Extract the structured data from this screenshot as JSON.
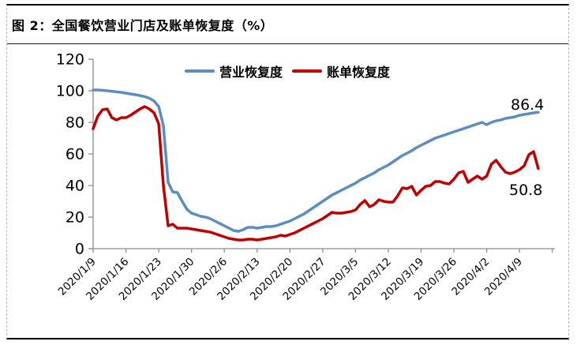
{
  "figure": {
    "title": "图 2：全国餐饮营业门店及账单恢复度（%）"
  },
  "chart_data": {
    "type": "line",
    "title": "全国餐饮营业门店及账单恢复度（%）",
    "grid": false,
    "legend_position": "top-center",
    "ylim": [
      0,
      120
    ],
    "yticks": [
      0,
      20,
      40,
      60,
      80,
      100,
      120
    ],
    "x_labels_shown": [
      "2020/1/9",
      "2020/1/16",
      "2020/1/23",
      "2020/1/30",
      "2020/2/6",
      "2020/2/13",
      "2020/2/20",
      "2020/2/27",
      "2020/3/5",
      "2020/3/12",
      "2020/3/19",
      "2020/3/26",
      "2020/4/2",
      "2020/4/9"
    ],
    "x": [
      "2020/1/9",
      "2020/1/10",
      "2020/1/11",
      "2020/1/12",
      "2020/1/13",
      "2020/1/14",
      "2020/1/15",
      "2020/1/16",
      "2020/1/17",
      "2020/1/18",
      "2020/1/19",
      "2020/1/20",
      "2020/1/21",
      "2020/1/22",
      "2020/1/23",
      "2020/1/24",
      "2020/1/25",
      "2020/1/26",
      "2020/1/27",
      "2020/1/28",
      "2020/1/29",
      "2020/1/30",
      "2020/1/31",
      "2020/2/1",
      "2020/2/2",
      "2020/2/3",
      "2020/2/4",
      "2020/2/5",
      "2020/2/6",
      "2020/2/7",
      "2020/2/8",
      "2020/2/9",
      "2020/2/10",
      "2020/2/11",
      "2020/2/12",
      "2020/2/13",
      "2020/2/14",
      "2020/2/15",
      "2020/2/16",
      "2020/2/17",
      "2020/2/18",
      "2020/2/19",
      "2020/2/20",
      "2020/2/21",
      "2020/2/22",
      "2020/2/23",
      "2020/2/24",
      "2020/2/25",
      "2020/2/26",
      "2020/2/27",
      "2020/2/28",
      "2020/2/29",
      "2020/3/1",
      "2020/3/2",
      "2020/3/3",
      "2020/3/4",
      "2020/3/5",
      "2020/3/6",
      "2020/3/7",
      "2020/3/8",
      "2020/3/9",
      "2020/3/10",
      "2020/3/11",
      "2020/3/12",
      "2020/3/13",
      "2020/3/14",
      "2020/3/15",
      "2020/3/16",
      "2020/3/17",
      "2020/3/18",
      "2020/3/19",
      "2020/3/20",
      "2020/3/21",
      "2020/3/22",
      "2020/3/23",
      "2020/3/24",
      "2020/3/25",
      "2020/3/26",
      "2020/3/27",
      "2020/3/28",
      "2020/3/29",
      "2020/3/30",
      "2020/3/31",
      "2020/4/1",
      "2020/4/2",
      "2020/4/3",
      "2020/4/4",
      "2020/4/5",
      "2020/4/6",
      "2020/4/7",
      "2020/4/8",
      "2020/4/9",
      "2020/4/10",
      "2020/4/11",
      "2020/4/12",
      "2020/4/13"
    ],
    "series": [
      {
        "name": "营业恢复度",
        "color": "#5B8DC1",
        "end_label": "86.4",
        "values": [
          100.5,
          100.5,
          100.3,
          100,
          99.7,
          99.3,
          99,
          98.5,
          98,
          97.5,
          97,
          96.3,
          95.3,
          93.5,
          90,
          78,
          42,
          36,
          35.5,
          30,
          25,
          22.5,
          21.5,
          20.5,
          20,
          19,
          17.5,
          16,
          14.5,
          13,
          11.5,
          11,
          12,
          13.5,
          13.5,
          13,
          13.5,
          14,
          14,
          14.5,
          15.5,
          16.5,
          17.5,
          19,
          20.5,
          22,
          24,
          26,
          28,
          30,
          32,
          34,
          35.5,
          37,
          38.5,
          40,
          41.5,
          43.5,
          45,
          46.5,
          48,
          50,
          51.5,
          53,
          55,
          57,
          59,
          60.5,
          62,
          64,
          65.5,
          67,
          68.5,
          70,
          71,
          72,
          73,
          74,
          75,
          76,
          77,
          78,
          79,
          80,
          78.5,
          80,
          81,
          81.5,
          82.5,
          83,
          83.5,
          84.5,
          85,
          85.5,
          86,
          86.4
        ]
      },
      {
        "name": "账单恢复度",
        "color": "#C00000",
        "end_label": "50.8",
        "values": [
          76,
          84,
          88,
          88.5,
          83,
          81.5,
          83,
          83,
          84.5,
          86.5,
          88.5,
          90,
          88.5,
          86,
          79,
          40,
          14.5,
          15.5,
          13,
          13,
          13,
          12.5,
          12,
          11.5,
          11,
          10.5,
          9.5,
          8.5,
          7.5,
          6.5,
          6,
          5.5,
          5.5,
          6,
          6,
          5.5,
          6,
          6.5,
          7,
          7.5,
          8.5,
          8,
          9,
          10,
          11.5,
          13,
          14.5,
          16,
          17.5,
          19,
          21,
          23,
          22.5,
          22.5,
          23,
          23.5,
          24.5,
          28,
          30.5,
          26.5,
          28,
          31,
          30,
          29.5,
          29.5,
          33.5,
          38.5,
          38,
          39.5,
          34,
          37,
          39.5,
          40,
          42.5,
          42.5,
          41.5,
          41,
          44,
          48,
          49,
          42,
          44,
          46,
          44,
          46,
          53.5,
          56,
          52,
          48.5,
          47.5,
          48.5,
          50,
          52.5,
          59.5,
          61.5,
          50.8
        ]
      }
    ]
  }
}
